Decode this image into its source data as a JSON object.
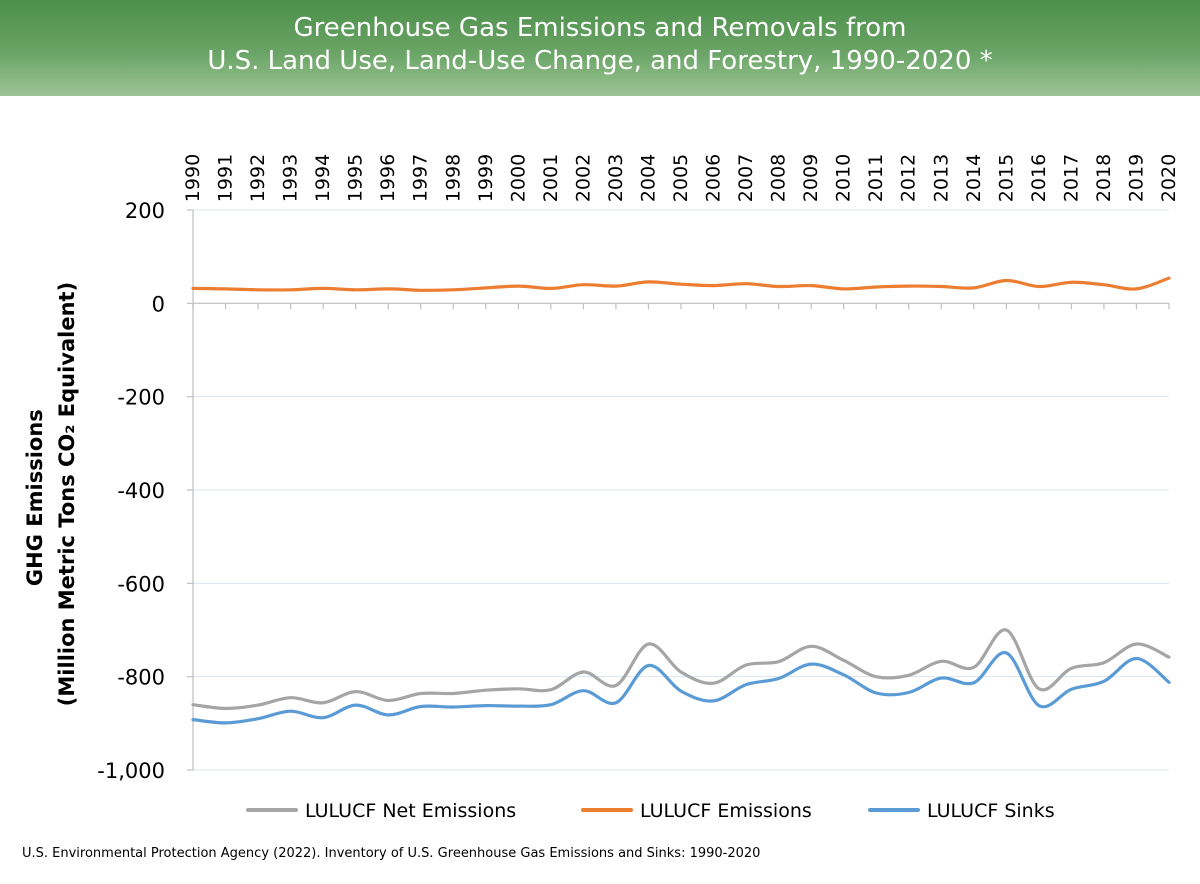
{
  "header": {
    "title_line1": "Greenhouse Gas Emissions and Removals from",
    "title_line2": "U.S. Land Use, Land-Use Change, and Forestry, 1990-2020 *"
  },
  "source": "U.S. Environmental Protection Agency (2022). Inventory of U.S. Greenhouse Gas Emissions and Sinks: 1990-2020",
  "colors": {
    "banner": "#5a9b56",
    "net_emissions": "#a5a5a5",
    "emissions": "#ed7d31",
    "sinks": "#5b9bd5",
    "gridline": "#dce6f0"
  },
  "chart_data": {
    "type": "line",
    "title": "Greenhouse Gas Emissions and Removals from U.S. Land Use, Land-Use Change, and Forestry, 1990-2020 *",
    "ylabel_line1": "GHG Emissions",
    "ylabel_line2": "(Million Metric Tons CO₂ Equivalent)",
    "xlabel": "",
    "x_axis_position": "top",
    "ylim": [
      -1000,
      200
    ],
    "yticks": [
      200,
      0,
      -200,
      -400,
      -600,
      -800,
      -1000
    ],
    "ytick_labels": [
      "200",
      "0",
      "-200",
      "-400",
      "-600",
      "-800",
      "-1,000"
    ],
    "grid": true,
    "legend_position": "bottom",
    "categories": [
      "1990",
      "1991",
      "1992",
      "1993",
      "1994",
      "1995",
      "1996",
      "1997",
      "1998",
      "1999",
      "2000",
      "2001",
      "2002",
      "2003",
      "2004",
      "2005",
      "2006",
      "2007",
      "2008",
      "2009",
      "2010",
      "2011",
      "2012",
      "2013",
      "2014",
      "2015",
      "2016",
      "2017",
      "2018",
      "2019",
      "2020"
    ],
    "series": [
      {
        "name": "LULUCF Net Emissions",
        "color": "#a5a5a5",
        "values": [
          -860,
          -868,
          -861,
          -845,
          -856,
          -832,
          -851,
          -836,
          -836,
          -829,
          -826,
          -828,
          -790,
          -819,
          -730,
          -790,
          -814,
          -775,
          -768,
          -735,
          -765,
          -800,
          -797,
          -767,
          -780,
          -700,
          -826,
          -782,
          -770,
          -730,
          -758
        ]
      },
      {
        "name": "LULUCF Emissions",
        "color": "#ed7d31",
        "values": [
          32,
          31,
          29,
          29,
          32,
          29,
          31,
          28,
          29,
          33,
          37,
          32,
          40,
          37,
          46,
          41,
          38,
          42,
          36,
          38,
          31,
          35,
          37,
          36,
          33,
          49,
          36,
          45,
          40,
          31,
          54
        ]
      },
      {
        "name": "LULUCF Sinks",
        "color": "#5b9bd5",
        "values": [
          -892,
          -899,
          -890,
          -874,
          -888,
          -861,
          -882,
          -864,
          -865,
          -862,
          -863,
          -860,
          -830,
          -856,
          -776,
          -831,
          -852,
          -817,
          -804,
          -773,
          -796,
          -835,
          -834,
          -803,
          -813,
          -749,
          -862,
          -827,
          -810,
          -761,
          -812
        ]
      }
    ],
    "legend": [
      "LULUCF Net Emissions",
      "LULUCF Emissions",
      "LULUCF Sinks"
    ]
  }
}
